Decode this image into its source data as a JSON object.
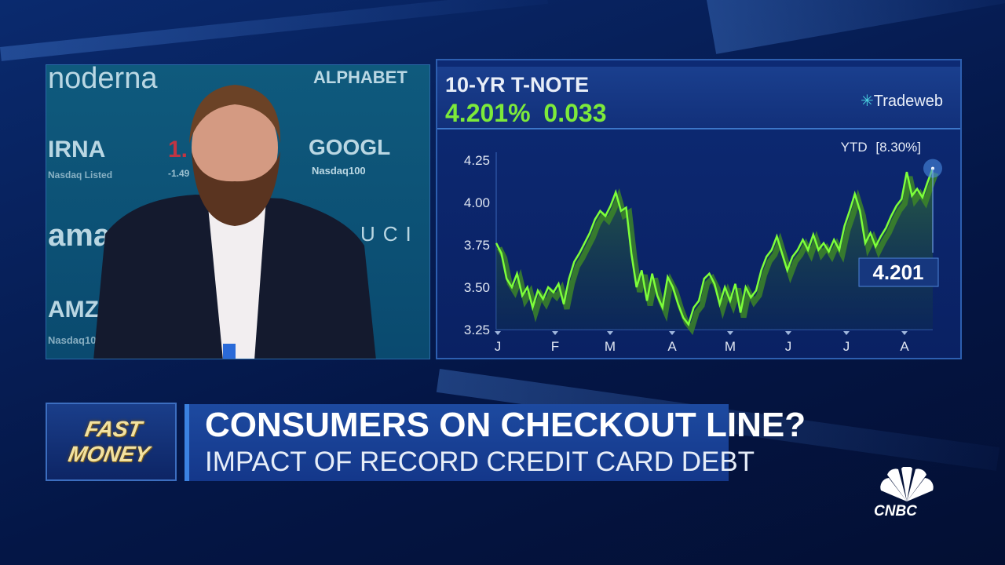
{
  "video": {
    "wall_text": [
      "noderna",
      "ALPHABET",
      "IRNA",
      "GOOGL",
      "Nasdaq100",
      "Nasdaq Listed",
      "-1.49",
      "ama",
      "AMZN",
      "Nasdaq100",
      "UCI",
      "1."
    ]
  },
  "chart_header": {
    "title": "10-YR T-NOTE",
    "yield": "4.201%",
    "change": "0.033",
    "source": "Tradeweb"
  },
  "chart_data": {
    "type": "area",
    "title": "10-YR T-NOTE",
    "annotation": "YTD [8.30%]",
    "last_value_label": "4.201",
    "ylim": [
      3.25,
      4.25
    ],
    "yticks": [
      "4.25",
      "4.00",
      "3.75",
      "3.50",
      "3.25"
    ],
    "xticks": [
      "J",
      "F",
      "M",
      "A",
      "M",
      "J",
      "J",
      "A"
    ],
    "grid": false,
    "line_color": "#7dff3a",
    "values": [
      3.76,
      3.7,
      3.55,
      3.5,
      3.58,
      3.45,
      3.5,
      3.38,
      3.48,
      3.43,
      3.5,
      3.47,
      3.52,
      3.4,
      3.55,
      3.65,
      3.7,
      3.76,
      3.82,
      3.9,
      3.95,
      3.92,
      3.98,
      4.06,
      3.95,
      3.97,
      3.7,
      3.5,
      3.6,
      3.42,
      3.58,
      3.45,
      3.38,
      3.56,
      3.5,
      3.4,
      3.32,
      3.28,
      3.38,
      3.42,
      3.55,
      3.58,
      3.52,
      3.4,
      3.5,
      3.42,
      3.52,
      3.35,
      3.5,
      3.44,
      3.48,
      3.6,
      3.68,
      3.72,
      3.8,
      3.7,
      3.6,
      3.68,
      3.72,
      3.78,
      3.72,
      3.81,
      3.72,
      3.76,
      3.71,
      3.78,
      3.72,
      3.86,
      3.95,
      4.05,
      3.95,
      3.76,
      3.82,
      3.74,
      3.8,
      3.85,
      3.92,
      3.98,
      4.02,
      4.18,
      4.04,
      4.08,
      4.03,
      4.12,
      4.201
    ]
  },
  "lower_third": {
    "show_logo": "FAST MONEY",
    "headline": "CONSUMERS ON CHECKOUT LINE?",
    "subheadline": "IMPACT OF RECORD CREDIT CARD DEBT"
  },
  "network": "CNBC"
}
